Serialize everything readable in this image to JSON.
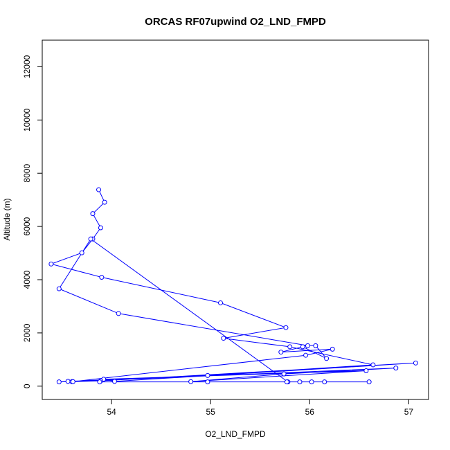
{
  "chart_data": {
    "type": "line",
    "title": "ORCAS RF07upwind O2_LND_FMPD",
    "xlabel": "O2_LND_FMPD",
    "ylabel": "Altitude (m)",
    "xlim": [
      53.3,
      57.2
    ],
    "ylim": [
      -500,
      13000
    ],
    "xticks": [
      54,
      55,
      56,
      57
    ],
    "yticks": [
      0,
      2000,
      4000,
      6000,
      8000,
      10000,
      12000
    ],
    "grid": false,
    "legend": "none",
    "color": "#0000ff",
    "series": [
      {
        "x": [
          53.87,
          53.93,
          53.81,
          53.89,
          53.81,
          53.7,
          53.39,
          53.9,
          55.1,
          55.76,
          55.13,
          55.8,
          56.64,
          54.97,
          53.56,
          53.47,
          53.6,
          56.87,
          55.74,
          54.8,
          56.57,
          53.92,
          54.03,
          57.07,
          53.89,
          53.61,
          55.96,
          56.23,
          55.71,
          55.93,
          56.17,
          56.06,
          55.98,
          54.07,
          53.47,
          53.79,
          55.78,
          55.9,
          56.02,
          56.15,
          55.77,
          56.6,
          54.97,
          53.88
        ],
        "y": [
          7380,
          6910,
          6480,
          5950,
          5530,
          5010,
          4590,
          4090,
          3130,
          2200,
          1800,
          1480,
          800,
          400,
          180,
          160,
          170,
          680,
          460,
          170,
          580,
          260,
          180,
          870,
          200,
          170,
          1160,
          1390,
          1280,
          1480,
          1040,
          1520,
          1520,
          2730,
          3660,
          5530,
          160,
          160,
          160,
          160,
          160,
          160,
          160,
          160
        ]
      }
    ]
  }
}
